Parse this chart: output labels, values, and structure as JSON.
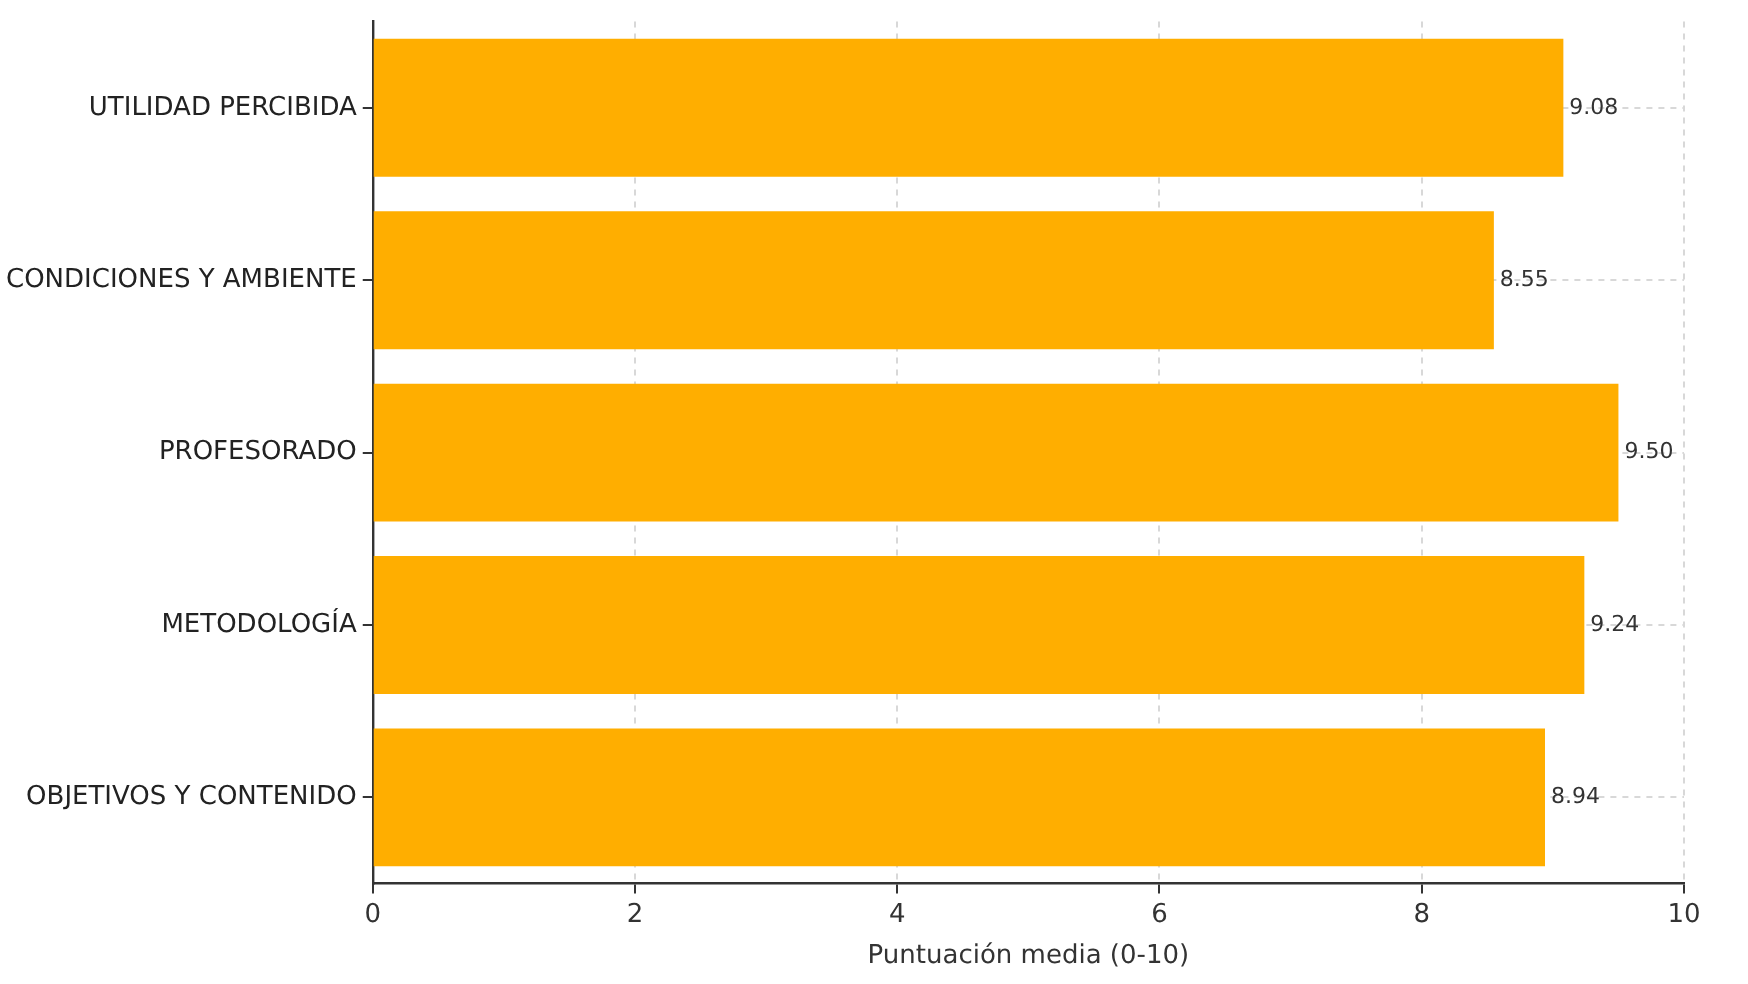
{
  "chart_data": {
    "type": "bar",
    "orientation": "horizontal",
    "xlabel": "Puntuación media (0-10)",
    "categories": [
      "UTILIDAD PERCIBIDA",
      "CONDICIONES Y AMBIENTE",
      "PROFESORADO",
      "METODOLOGÍA",
      "OBJETIVOS Y CONTENIDO"
    ],
    "values": [
      9.08,
      8.55,
      9.5,
      9.24,
      8.94
    ],
    "value_labels": [
      "9.08",
      "8.55",
      "9.50",
      "9.24",
      "8.94"
    ],
    "color": "#ffae00",
    "xlim": [
      0,
      10
    ],
    "xticks": [
      0,
      2,
      4,
      6,
      8,
      10
    ],
    "grid": true,
    "legend": false
  }
}
